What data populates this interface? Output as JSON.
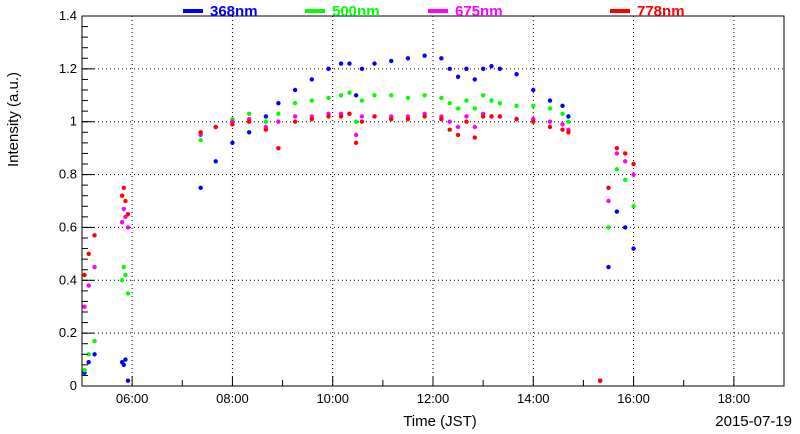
{
  "chart_data": {
    "type": "scatter",
    "title": "",
    "xlabel": "Time (JST)",
    "ylabel": "Intensity (a.u.)",
    "date": "2015-07-19",
    "xlim": [
      "05:00",
      "19:00"
    ],
    "ylim": [
      0,
      1.4
    ],
    "x_ticks": [
      "06:00",
      "08:00",
      "10:00",
      "12:00",
      "14:00",
      "16:00",
      "18:00"
    ],
    "y_ticks": [
      "0",
      "0.2",
      "0.4",
      "0.6",
      "0.8",
      "1",
      "1.2",
      "1.4"
    ],
    "grid": true,
    "legend_position": "top",
    "series": [
      {
        "name": "368nm",
        "color": "#0000ff",
        "x": [
          "05:03",
          "05:08",
          "05:15",
          "05:48",
          "05:50",
          "05:52",
          "05:55",
          "07:22",
          "07:40",
          "08:00",
          "08:20",
          "08:40",
          "08:55",
          "09:15",
          "09:35",
          "09:55",
          "10:10",
          "10:20",
          "10:28",
          "10:35",
          "10:50",
          "11:10",
          "11:30",
          "11:50",
          "12:10",
          "12:20",
          "12:30",
          "12:40",
          "12:50",
          "13:00",
          "13:10",
          "13:20",
          "13:40",
          "14:00",
          "14:20",
          "14:35",
          "14:42",
          "15:20",
          "15:30",
          "15:40",
          "15:50",
          "16:00"
        ],
        "y": [
          0.05,
          0.09,
          0.12,
          0.09,
          0.08,
          0.1,
          0.02,
          0.75,
          0.85,
          0.92,
          0.96,
          1.02,
          1.07,
          1.12,
          1.16,
          1.2,
          1.22,
          1.22,
          1.1,
          1.2,
          1.22,
          1.23,
          1.24,
          1.25,
          1.24,
          1.2,
          1.17,
          1.2,
          1.16,
          1.2,
          1.21,
          1.2,
          1.18,
          1.12,
          1.08,
          1.06,
          1.02,
          0.02,
          0.45,
          0.66,
          0.6,
          0.52
        ]
      },
      {
        "name": "500nm",
        "color": "#00ff00",
        "x": [
          "05:03",
          "05:08",
          "05:15",
          "05:48",
          "05:50",
          "05:52",
          "05:55",
          "07:22",
          "07:40",
          "08:00",
          "08:20",
          "08:40",
          "08:55",
          "09:15",
          "09:35",
          "09:55",
          "10:10",
          "10:20",
          "10:28",
          "10:35",
          "10:50",
          "11:10",
          "11:30",
          "11:50",
          "12:10",
          "12:20",
          "12:30",
          "12:40",
          "12:50",
          "13:00",
          "13:10",
          "13:20",
          "13:40",
          "14:00",
          "14:20",
          "14:35",
          "14:42",
          "15:20",
          "15:30",
          "15:40",
          "15:50",
          "16:00"
        ],
        "y": [
          0.06,
          0.12,
          0.17,
          0.4,
          0.45,
          0.42,
          0.35,
          0.93,
          0.98,
          1.01,
          1.03,
          1.0,
          1.03,
          1.07,
          1.08,
          1.09,
          1.1,
          1.11,
          1.0,
          1.08,
          1.1,
          1.1,
          1.09,
          1.1,
          1.09,
          1.07,
          1.05,
          1.08,
          1.05,
          1.1,
          1.08,
          1.07,
          1.06,
          1.06,
          1.05,
          1.03,
          1.0,
          0.02,
          0.6,
          0.82,
          0.78,
          0.68
        ]
      },
      {
        "name": "675nm",
        "color": "#ff00ff",
        "x": [
          "05:03",
          "05:08",
          "05:15",
          "05:48",
          "05:50",
          "05:52",
          "05:55",
          "07:22",
          "07:40",
          "08:00",
          "08:20",
          "08:40",
          "08:55",
          "09:15",
          "09:35",
          "09:55",
          "10:10",
          "10:20",
          "10:28",
          "10:35",
          "10:50",
          "11:10",
          "11:30",
          "11:50",
          "12:10",
          "12:20",
          "12:30",
          "12:40",
          "12:50",
          "13:00",
          "13:10",
          "13:20",
          "13:40",
          "14:00",
          "14:20",
          "14:35",
          "14:42",
          "15:20",
          "15:30",
          "15:40",
          "15:50",
          "16:00"
        ],
        "y": [
          0.3,
          0.38,
          0.45,
          0.62,
          0.67,
          0.64,
          0.6,
          0.95,
          0.98,
          1.0,
          1.01,
          0.98,
          1.0,
          1.02,
          1.02,
          1.03,
          1.03,
          1.03,
          0.95,
          1.02,
          1.02,
          1.02,
          1.02,
          1.03,
          1.02,
          1.0,
          0.98,
          1.02,
          0.98,
          1.03,
          1.02,
          1.02,
          1.01,
          1.01,
          1.0,
          0.99,
          0.97,
          0.02,
          0.7,
          0.88,
          0.85,
          0.8
        ]
      },
      {
        "name": "778nm",
        "color": "#ff0000",
        "x": [
          "05:03",
          "05:08",
          "05:15",
          "05:48",
          "05:50",
          "05:52",
          "05:55",
          "07:22",
          "07:40",
          "08:00",
          "08:20",
          "08:40",
          "08:55",
          "09:15",
          "09:35",
          "09:55",
          "10:10",
          "10:20",
          "10:28",
          "10:35",
          "10:50",
          "11:10",
          "11:30",
          "11:50",
          "12:10",
          "12:20",
          "12:30",
          "12:40",
          "12:50",
          "13:00",
          "13:10",
          "13:20",
          "13:40",
          "14:00",
          "14:20",
          "14:35",
          "14:42",
          "15:20",
          "15:30",
          "15:40",
          "15:50",
          "16:00"
        ],
        "y": [
          0.42,
          0.5,
          0.57,
          0.72,
          0.75,
          0.7,
          0.65,
          0.96,
          0.98,
          0.99,
          1.0,
          0.97,
          0.9,
          1.0,
          1.01,
          1.02,
          1.02,
          1.03,
          0.92,
          1.0,
          1.02,
          1.01,
          1.01,
          1.02,
          1.01,
          0.97,
          0.95,
          1.0,
          0.94,
          1.02,
          1.02,
          1.02,
          1.01,
          1.0,
          0.98,
          0.97,
          0.96,
          0.02,
          0.75,
          0.9,
          0.88,
          0.84
        ]
      }
    ]
  }
}
